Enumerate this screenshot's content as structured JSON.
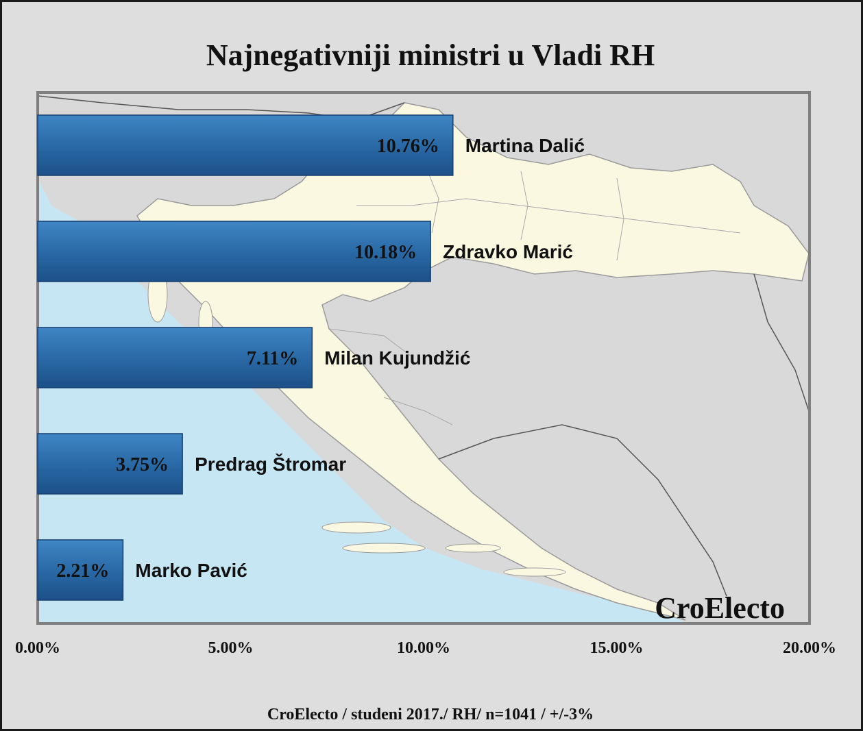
{
  "chart_data": {
    "type": "bar",
    "orientation": "horizontal",
    "title": "Najnegativniji ministri u Vladi RH",
    "categories": [
      "Martina Dalić",
      "Zdravko Marić",
      "Milan Kujundžić",
      "Predrag Štromar",
      "Marko Pavić"
    ],
    "values": [
      10.76,
      10.18,
      7.11,
      3.75,
      2.21
    ],
    "data_labels": [
      "10.76%",
      "10.18%",
      "7.11%",
      "3.75%",
      "2.21%"
    ],
    "xlim": [
      0,
      20
    ],
    "x_ticks": [
      0,
      5,
      10,
      15,
      20
    ],
    "x_tick_labels": [
      "0.00%",
      "5.00%",
      "10.00%",
      "15.00%",
      "20.00%"
    ],
    "grid": false,
    "legend": "none",
    "bar_color": "#2a6aa6",
    "background": "map of Croatia"
  },
  "watermark": "CroElecto",
  "source_note": "CroElecto / studeni 2017./ RH/ n=1041 / +/-3%",
  "colors": {
    "bar": "#2a6aa6",
    "sea": "#c6e6f4",
    "land_croatia": "#fbf8e2",
    "land_other": "#d9d9d9"
  }
}
